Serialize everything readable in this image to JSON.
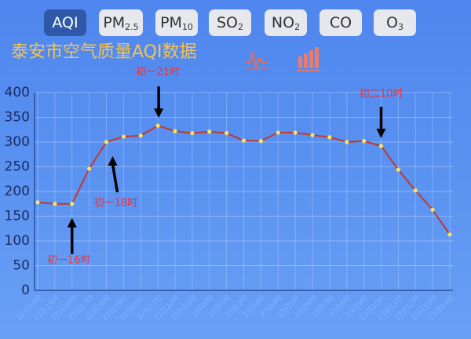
{
  "tabs": [
    {
      "text": "AQI"
    },
    {
      "text": "PM",
      "sub": "2.5"
    },
    {
      "text": "PM",
      "sub": "10"
    },
    {
      "text": "SO",
      "sub": "2"
    },
    {
      "text": "NO",
      "sub": "2"
    },
    {
      "text": "CO"
    },
    {
      "text": "O",
      "sub": "3"
    }
  ],
  "chart_data": {
    "type": "line",
    "title": "泰安市空气质量AQI数据",
    "categories": [
      "22日14时",
      "22日15时",
      "22日16时",
      "22日17时",
      "22日18时",
      "22日19时",
      "22日20时",
      "22日21时",
      "22日22时",
      "22日23时",
      "23日0时",
      "23日1时",
      "23日2时",
      "23日3时",
      "23日4时",
      "23日5时",
      "23日6时",
      "23日7时",
      "23日8时",
      "23日9时",
      "23日10时",
      "23日11时",
      "23日12时",
      "23日13时",
      "23日14时"
    ],
    "series": [
      {
        "name": "AQI",
        "color": "#c0392b",
        "point_color": "#f5e663",
        "values": [
          178,
          175,
          175,
          246,
          300,
          311,
          313,
          333,
          322,
          318,
          321,
          318,
          303,
          302,
          319,
          319,
          314,
          310,
          300,
          302,
          292,
          244,
          202,
          163,
          113
        ]
      }
    ],
    "ylim": [
      0,
      400
    ],
    "yticks": [
      0,
      50,
      100,
      150,
      200,
      250,
      300,
      350,
      400
    ],
    "grid": true,
    "annotations": [
      {
        "text": "初一16时",
        "x": "22日16时"
      },
      {
        "text": "初一18时",
        "x": "22日18时"
      },
      {
        "text": "初一21时",
        "x": "22日21时"
      },
      {
        "text": "初二10时",
        "x": "23日10时"
      }
    ]
  }
}
